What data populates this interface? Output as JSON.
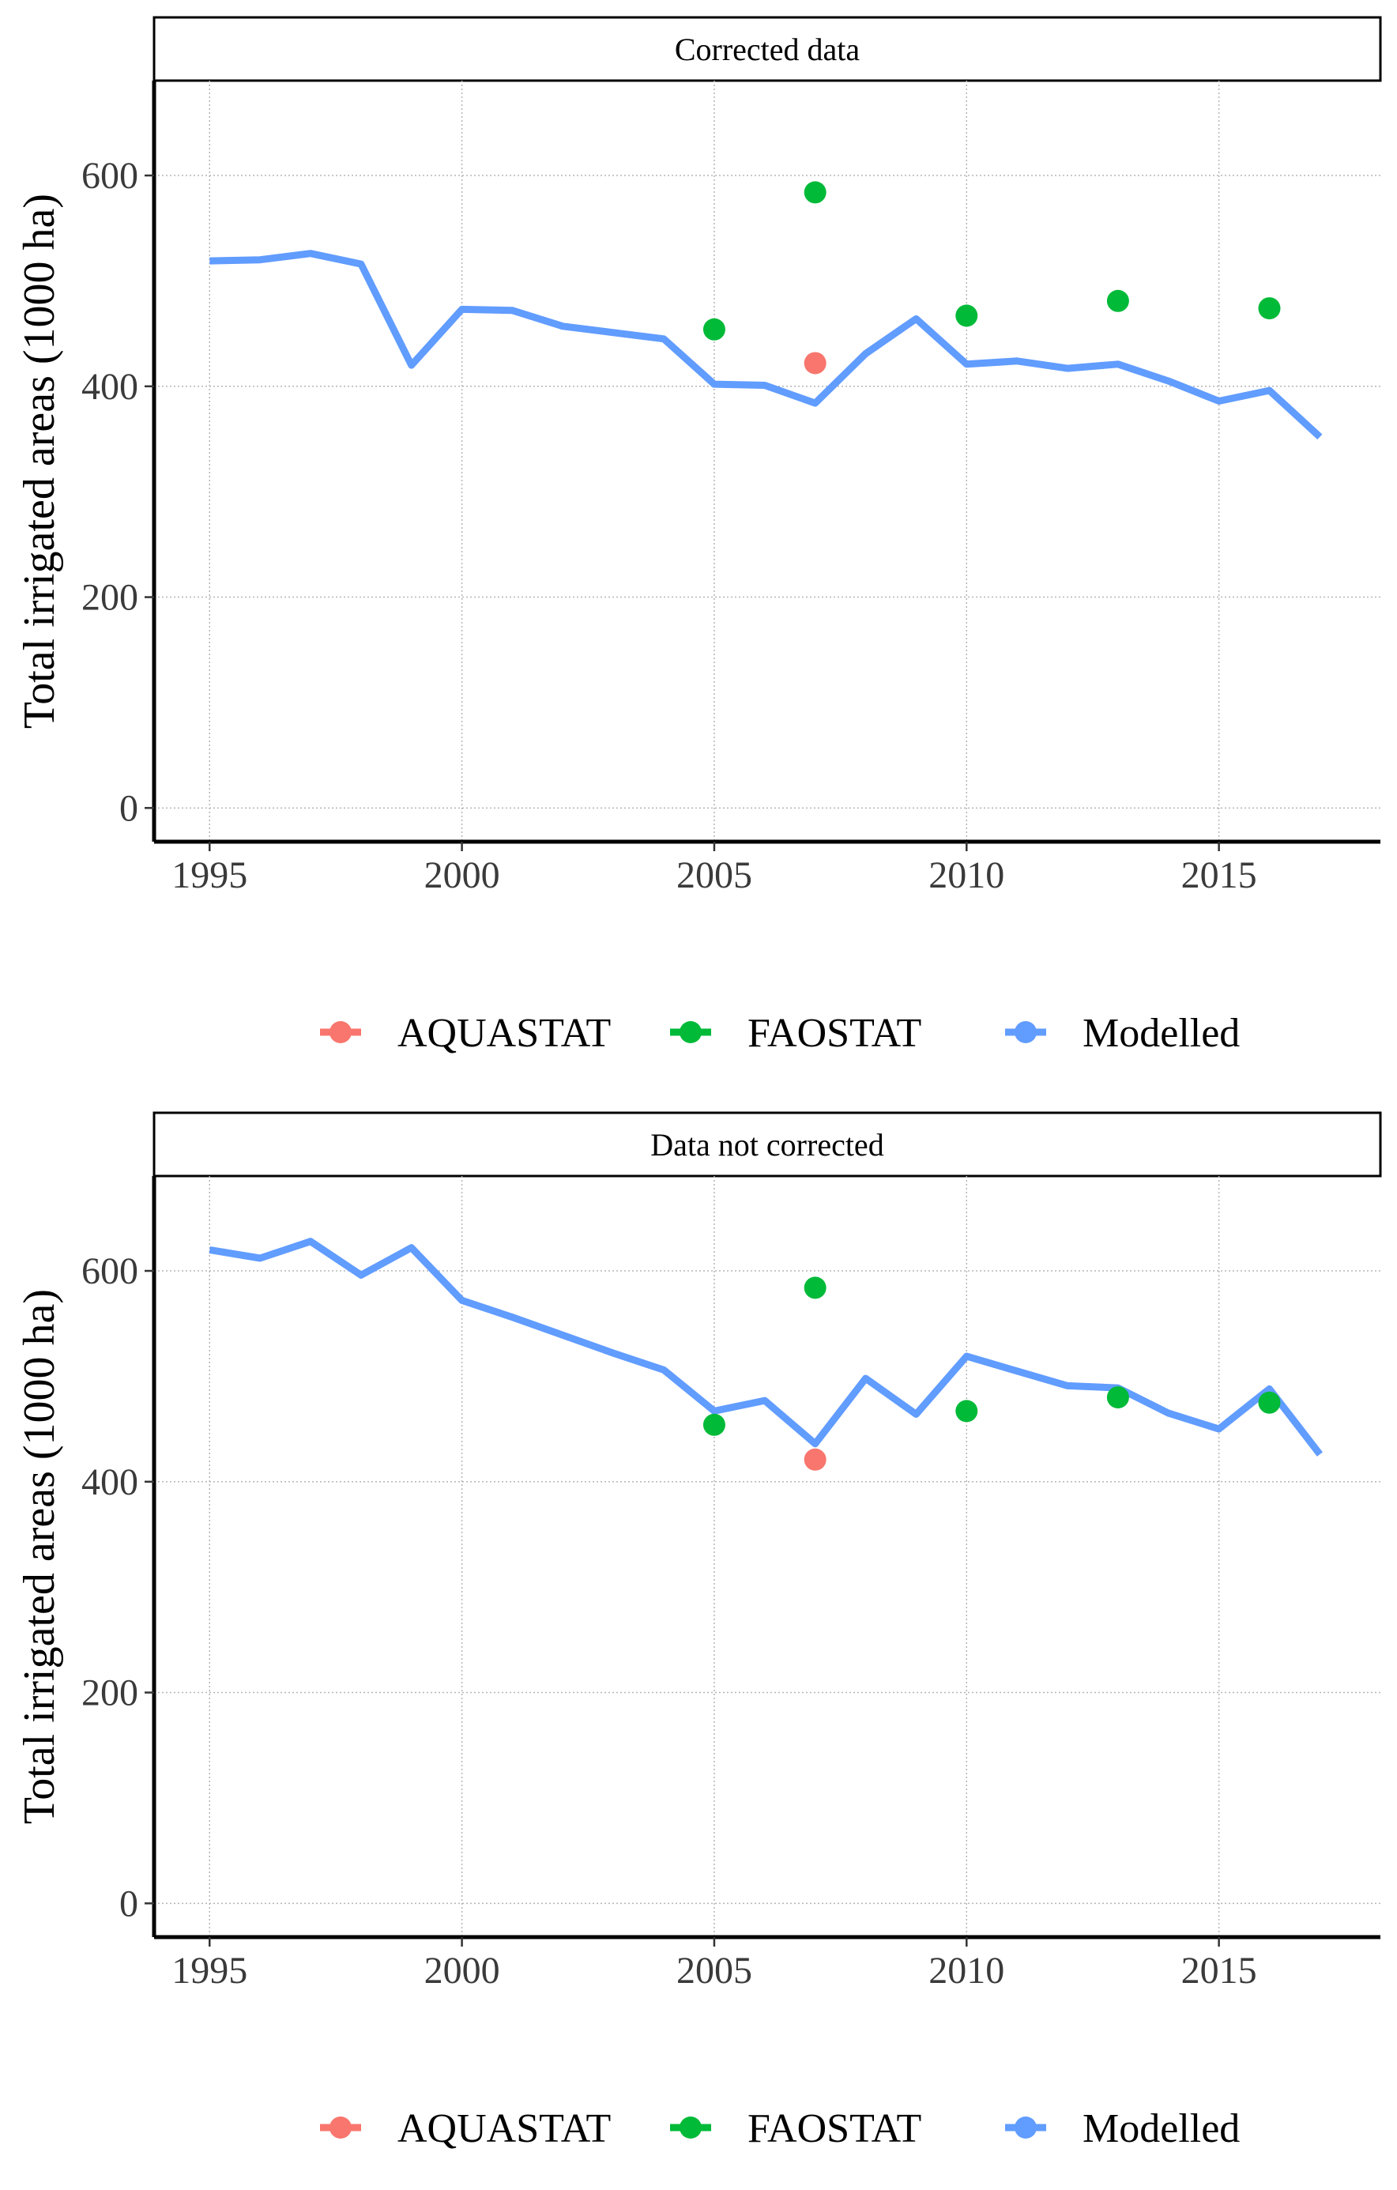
{
  "chart_data": [
    {
      "type": "line",
      "title": "Corrected data",
      "xlabel": "",
      "ylabel": "Total irrigated areas (1000 ha)",
      "xlim": [
        1993.9,
        2018.2
      ],
      "ylim": [
        -32,
        690
      ],
      "x_ticks": [
        1995,
        2000,
        2005,
        2010,
        2015
      ],
      "y_ticks": [
        0,
        200,
        400,
        600
      ],
      "grid": true,
      "legend_position": "bottom",
      "series": [
        {
          "name": "Modelled",
          "kind": "line",
          "color": "#619CFF",
          "x": [
            1995,
            1996,
            1997,
            1998,
            1999,
            2000,
            2001,
            2002,
            2003,
            2004,
            2005,
            2006,
            2007,
            2008,
            2009,
            2010,
            2011,
            2012,
            2013,
            2014,
            2015,
            2016,
            2017
          ],
          "y": [
            519,
            520,
            526,
            516,
            420,
            473,
            472,
            457,
            451,
            445,
            402,
            401,
            384,
            431,
            464,
            421,
            424,
            417,
            421,
            405,
            386,
            396,
            352
          ]
        },
        {
          "name": "AQUASTAT",
          "kind": "point",
          "color": "#F8766D",
          "x": [
            2007
          ],
          "y": [
            422
          ]
        },
        {
          "name": "FAOSTAT",
          "kind": "point",
          "color": "#00BA38",
          "x": [
            2005,
            2007,
            2010,
            2013,
            2016
          ],
          "y": [
            454,
            584,
            467,
            481,
            474
          ]
        }
      ]
    },
    {
      "type": "line",
      "title": "Data not corrected",
      "xlabel": "",
      "ylabel": "Total irrigated areas (1000 ha)",
      "xlim": [
        1993.9,
        2018.2
      ],
      "ylim": [
        -32,
        690
      ],
      "x_ticks": [
        1995,
        2000,
        2005,
        2010,
        2015
      ],
      "y_ticks": [
        0,
        200,
        400,
        600
      ],
      "grid": true,
      "legend_position": "bottom",
      "series": [
        {
          "name": "Modelled",
          "kind": "line",
          "color": "#619CFF",
          "x": [
            1995,
            1996,
            1997,
            1998,
            1999,
            2000,
            2001,
            2002,
            2003,
            2004,
            2005,
            2006,
            2007,
            2008,
            2009,
            2010,
            2011,
            2012,
            2013,
            2014,
            2015,
            2016,
            2017
          ],
          "y": [
            620,
            612,
            628,
            596,
            622,
            572,
            556,
            539,
            522,
            506,
            467,
            477,
            436,
            498,
            464,
            519,
            505,
            491,
            489,
            465,
            450,
            488,
            426
          ]
        },
        {
          "name": "AQUASTAT",
          "kind": "point",
          "color": "#F8766D",
          "x": [
            2007
          ],
          "y": [
            421
          ]
        },
        {
          "name": "FAOSTAT",
          "kind": "point",
          "color": "#00BA38",
          "x": [
            2005,
            2007,
            2010,
            2013,
            2016
          ],
          "y": [
            454,
            584,
            467,
            480,
            475
          ]
        }
      ]
    }
  ],
  "legend": {
    "items": [
      {
        "label": "AQUASTAT",
        "color": "#F8766D"
      },
      {
        "label": "FAOSTAT",
        "color": "#00BA38"
      },
      {
        "label": "Modelled",
        "color": "#619CFF"
      }
    ]
  }
}
